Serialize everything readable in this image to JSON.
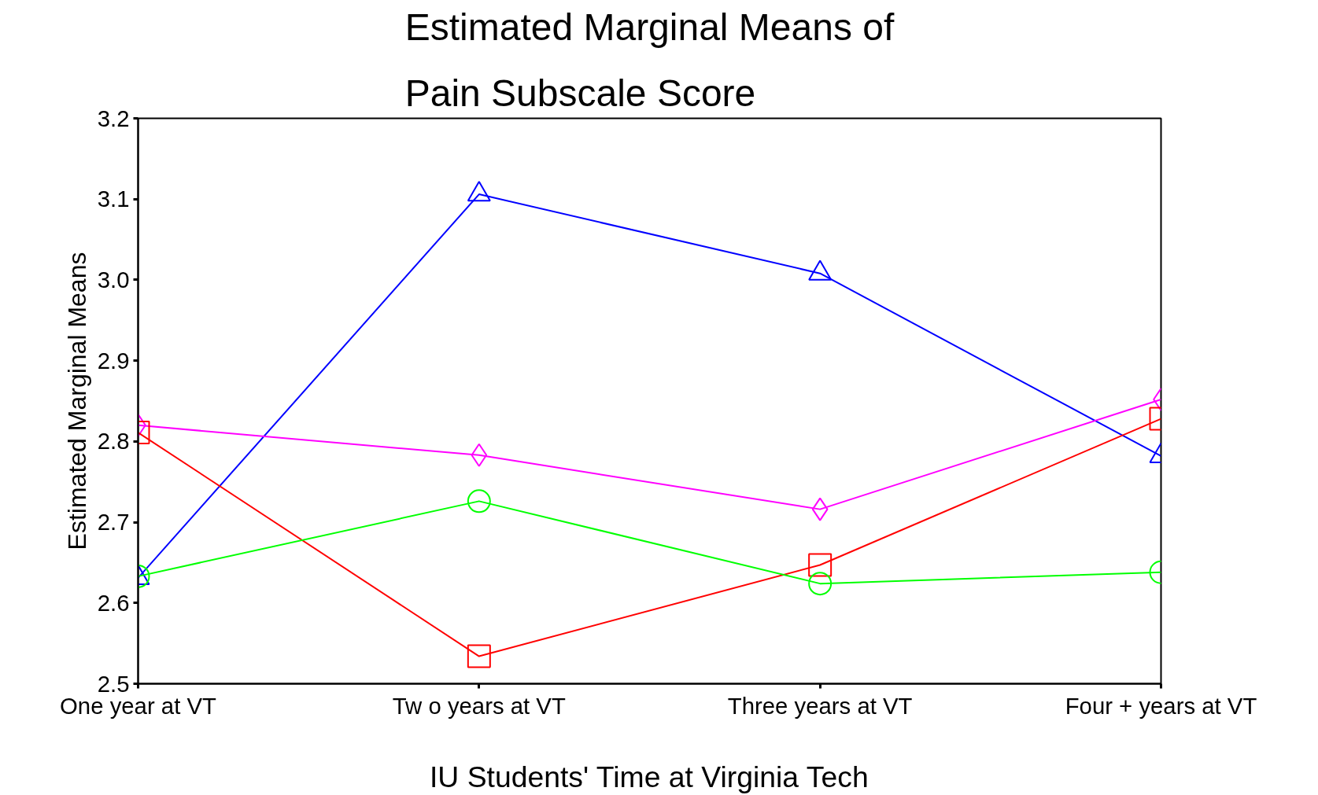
{
  "chart_data": {
    "type": "line",
    "title": "Estimated Marginal Means of\nPain Subscale Score",
    "xlabel": "IU Students' Time at Virginia Tech",
    "ylabel": "Estimated Marginal Means",
    "categories": [
      "One year at VT",
      "Tw o years at VT",
      "Three years at VT",
      "Four + years at VT"
    ],
    "ylim": [
      2.5,
      3.2
    ],
    "yticks": [
      {
        "value": 2.5,
        "label": "2.5"
      },
      {
        "value": 2.6,
        "label": "2.6"
      },
      {
        "value": 2.7,
        "label": "2.7"
      },
      {
        "value": 2.8,
        "label": "2.8"
      },
      {
        "value": 2.9,
        "label": "2.9"
      },
      {
        "value": 3.0,
        "label": "3.0"
      },
      {
        "value": 3.1,
        "label": "3.1"
      },
      {
        "value": 3.2,
        "label": "3.2"
      }
    ],
    "grid": false,
    "series": [
      {
        "color": "#0000ff",
        "marker": "triangle",
        "values": [
          2.631,
          3.106,
          3.008,
          2.782
        ]
      },
      {
        "color": "#ff00ff",
        "marker": "diamond",
        "values": [
          2.82,
          2.783,
          2.716,
          2.852
        ]
      },
      {
        "color": "#ff0000",
        "marker": "square",
        "values": [
          2.811,
          2.534,
          2.647,
          2.828
        ]
      },
      {
        "color": "#00ff00",
        "marker": "circle",
        "values": [
          2.633,
          2.726,
          2.624,
          2.638
        ]
      }
    ]
  }
}
